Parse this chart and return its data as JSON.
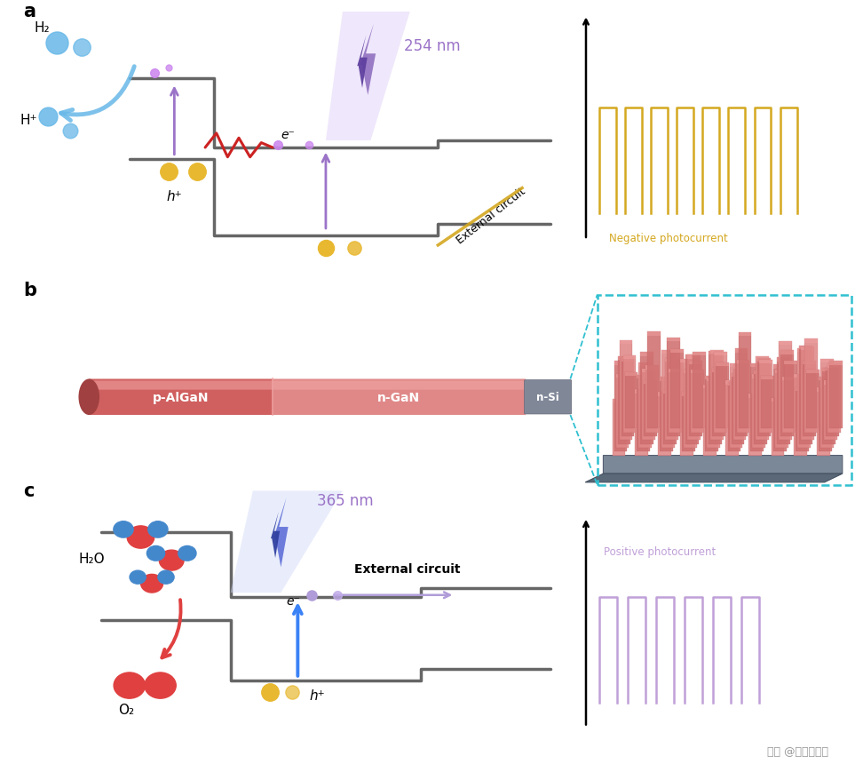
{
  "bg_color": "#ffffff",
  "label_a": "a",
  "label_b": "b",
  "label_c": "c",
  "label_fontsize": 15,
  "text_254nm": "254 nm",
  "text_365nm": "365 nm",
  "text_neg_photo": "Negative photocurrent",
  "text_pos_photo": "Positive photocurrent",
  "text_ext_circuit_a": "External circuit",
  "text_ext_circuit_c": "External circuit",
  "text_hplus": "h⁺",
  "text_eminus": "e⁻",
  "text_H2": "H₂",
  "text_Hplus": "H⁺",
  "text_H2O": "H₂O",
  "text_O2": "O₂",
  "text_pAlGaN": "p-AlGaN",
  "text_nGaN": "n-GaN",
  "text_nSi": "n-Si",
  "text_watermark": "头条 @科协返边事",
  "color_purple_light": "#9b74c8",
  "color_purple_arrow": "#9b74c8",
  "color_blue_arrow": "#3b82f6",
  "color_yellow": "#e8b830",
  "color_gold_line": "#d4a820",
  "color_band": "#666666",
  "color_red_zz": "#cc2222",
  "color_blue_h2": "#68b8e8",
  "color_cyan_dot": "#00bcd4",
  "color_pink_rod": "#d96870",
  "color_light_pink_rod": "#e89090",
  "color_gray_si": "#808898",
  "color_platform": "#7a8090",
  "color_cyan_dashed": "#30c0d0",
  "color_red_mol": "#e04040",
  "color_blue_mol": "#4488cc",
  "color_purple_pulse": "#c0a0d8",
  "color_yellow_pulse": "#d4a820"
}
